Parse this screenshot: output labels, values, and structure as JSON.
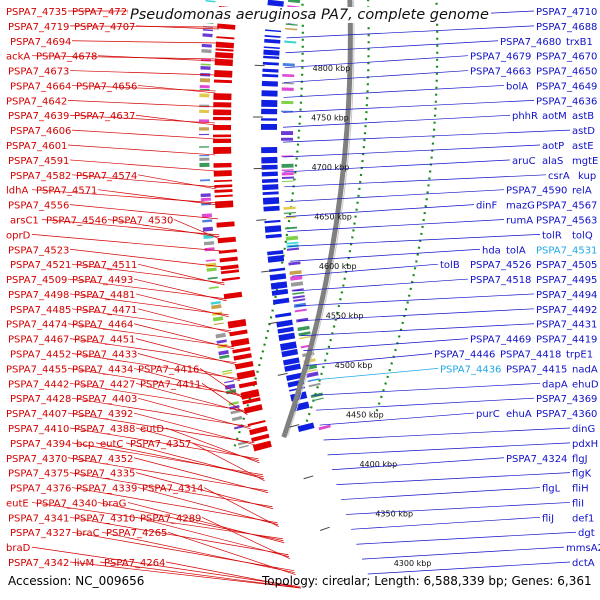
{
  "title": "Pseudomonas aeruginosa PA7, complete genome",
  "footer": {
    "accession": "Accession: NC_009656",
    "summary": "Topology: circular; Length: 6,588,339 bp; Genes: 6,361"
  },
  "colors": {
    "left_labels": "#d40000",
    "right_labels": "#1010c8",
    "highlight_labels": "#1fa8e8",
    "backbone": "#808080",
    "gc_dots": "#1a8a1a",
    "scale_text": "#111111"
  },
  "scale_labels": [
    "4800 kbp",
    "4750 kbp",
    "4700 kbp",
    "4650 kbp",
    "4600 kbp",
    "4550 kbp",
    "4500 kbp",
    "4450 kbp",
    "4400 kbp",
    "4350 kbp",
    "4300 kbp"
  ],
  "left_labels": [
    [
      "PSPA7_4735",
      "PSPA7_4728",
      "prpB"
    ],
    [
      "PSPA7_4719",
      "PSPA7_4707"
    ],
    [
      "PSPA7_4694"
    ],
    [
      "ackA",
      "PSPA7_4678"
    ],
    [
      "PSPA7_4673"
    ],
    [
      "PSPA7_4664",
      "PSPA7_4656"
    ],
    [
      "PSPA7_4642"
    ],
    [
      "PSPA7_4639",
      "PSPA7_4637"
    ],
    [
      "PSPA7_4606"
    ],
    [
      "PSPA7_4601"
    ],
    [
      "PSPA7_4591"
    ],
    [
      "PSPA7_4582",
      "PSPA7_4574"
    ],
    [
      "ldhA",
      "PSPA7_4571"
    ],
    [
      "PSPA7_4556"
    ],
    [
      "arsC1",
      "PSPA7_4546",
      "PSPA7_4530"
    ],
    [
      "oprD"
    ],
    [
      "PSPA7_4523"
    ],
    [
      "PSPA7_4521",
      "PSPA7_4511"
    ],
    [
      "PSPA7_4509",
      "PSPA7_4493"
    ],
    [
      "PSPA7_4498",
      "PSPA7_4481"
    ],
    [
      "PSPA7_4485",
      "PSPA7_4471"
    ],
    [
      "PSPA7_4474",
      "PSPA7_4464"
    ],
    [
      "PSPA7_4467",
      "PSPA7_4451"
    ],
    [
      "PSPA7_4452",
      "PSPA7_4433"
    ],
    [
      "PSPA7_4455",
      "PSPA7_4434",
      "PSPA7_4416"
    ],
    [
      "PSPA7_4442",
      "PSPA7_4427",
      "PSPA7_4411"
    ],
    [
      "PSPA7_4428",
      "PSPA7_4403"
    ],
    [
      "PSPA7_4407",
      "PSPA7_4392"
    ],
    [
      "PSPA7_4410",
      "PSPA7_4388",
      "eutD"
    ],
    [
      "PSPA7_4394",
      "bcp",
      "eutC",
      "PSPA7_4357"
    ],
    [
      "PSPA7_4370",
      "PSPA7_4352"
    ],
    [
      "PSPA7_4375",
      "PSPA7_4335"
    ],
    [
      "PSPA7_4376",
      "PSPA7_4339",
      "PSPA7_4314"
    ],
    [
      "eutE",
      "PSPA7_4340",
      "braG"
    ],
    [
      "PSPA7_4341",
      "PSPA7_4310",
      "PSPA7_4289"
    ],
    [
      "PSPA7_4327",
      "braC",
      "PSPA7_4265"
    ],
    [
      "braD"
    ],
    [
      "PSPA7_4342",
      "livM",
      "PSPA7_4264"
    ]
  ],
  "right_labels": [
    [
      "PSPA7_4710"
    ],
    [
      "PSPA7_4688"
    ],
    [
      "PSPA7_4680",
      "trxB1"
    ],
    [
      "PSPA7_4679",
      "PSPA7_4670"
    ],
    [
      "PSPA7_4663",
      "PSPA7_4650"
    ],
    [
      "bolA",
      "PSPA7_4649"
    ],
    [
      "PSPA7_4636"
    ],
    [
      "phhR",
      "aotM",
      "astB"
    ],
    [
      "astD"
    ],
    [
      "aotP",
      "astE"
    ],
    [
      "aruC",
      "alaS",
      "mgtE"
    ],
    [
      "csrA",
      "kup"
    ],
    [
      "PSPA7_4590",
      "relA"
    ],
    [
      "dinF",
      "mazG",
      "PSPA7_4567"
    ],
    [
      "rumA",
      "PSPA7_4563"
    ],
    [
      "tolR",
      "tolQ"
    ],
    [
      "hda",
      "tolA",
      "PSPA7_4531"
    ],
    [
      "tolB",
      "PSPA7_4526",
      "PSPA7_4505"
    ],
    [
      "PSPA7_4518",
      "PSPA7_4495"
    ],
    [
      "PSPA7_4494"
    ],
    [
      "PSPA7_4492"
    ],
    [
      "PSPA7_4431"
    ],
    [
      "PSPA7_4469",
      "PSPA7_4419"
    ],
    [
      "PSPA7_4446",
      "PSPA7_4418",
      "trpE1"
    ],
    [
      "PSPA7_4436",
      "PSPA7_4415",
      "nadA"
    ],
    [
      "dapA",
      "ehuD"
    ],
    [
      "PSPA7_4369"
    ],
    [
      "purC",
      "ehuA",
      "PSPA7_4360"
    ],
    [
      "dinG"
    ],
    [
      "pdxH"
    ],
    [
      "PSPA7_4324",
      "flgJ"
    ],
    [
      "flgK"
    ],
    [
      "flgL",
      "fliH"
    ],
    [
      "fliI"
    ],
    [
      "fliJ",
      "def1"
    ],
    [
      "dgt"
    ],
    [
      "mmsA2"
    ],
    [
      "dctA"
    ]
  ]
}
